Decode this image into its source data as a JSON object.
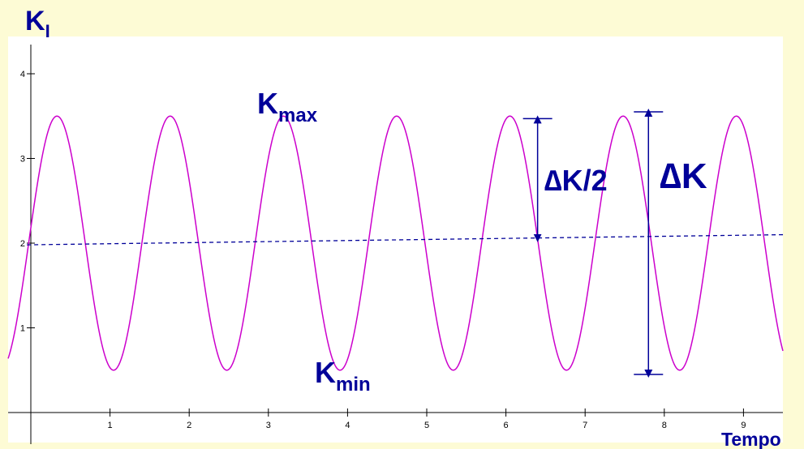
{
  "chart_data": {
    "type": "line",
    "xlabel": "Tempo",
    "ylabel_main": "K",
    "ylabel_sub": "I",
    "xlim": [
      -0.3,
      9.5
    ],
    "ylim": [
      -0.6,
      4.3
    ],
    "x_ticks": [
      "1",
      "2",
      "3",
      "4",
      "5",
      "6",
      "7",
      "8",
      "9"
    ],
    "y_ticks": [
      "1",
      "2",
      "3",
      "4"
    ],
    "series": [
      {
        "kind": "sinusoid",
        "mean": 2.0,
        "amplitude": 1.5,
        "period": 1.43,
        "phase_peak_x": 0.33,
        "color": "#cc00cc"
      },
      {
        "kind": "mean-line",
        "x": [
          -0.05,
          9.5
        ],
        "y": [
          1.98,
          2.1
        ],
        "color": "#000099",
        "dashed": true
      }
    ],
    "annotations": {
      "kmax": {
        "main": "K",
        "sub": "max"
      },
      "kmin": {
        "main": "K",
        "sub": "min"
      },
      "half_range": {
        "text": "∆K/2",
        "x": 6.4,
        "y_from": 2.05,
        "y_to": 3.47
      },
      "range": {
        "text": "∆K",
        "x": 7.8,
        "y_from": 0.45,
        "y_to": 3.55
      }
    },
    "colors": {
      "annotation": "#000099",
      "curve": "#cc00cc",
      "background": "#fdfbd5"
    }
  }
}
